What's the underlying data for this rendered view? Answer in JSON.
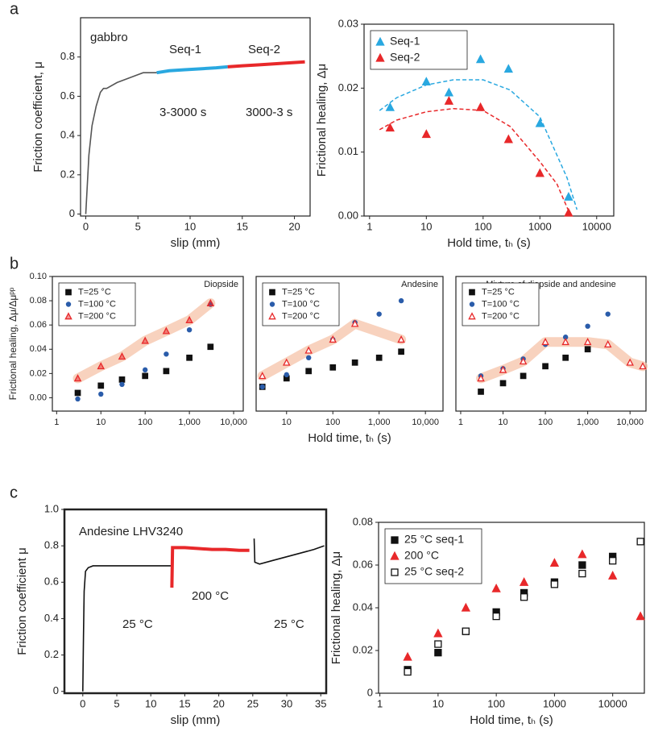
{
  "chart_data": [
    {
      "type": "line",
      "panel_label": "a",
      "xlabel": "slip (mm)",
      "ylabel": "Friction coefficient, μ",
      "xlim": [
        -0.5,
        21.5
      ],
      "ylim": [
        -0.01,
        1.0
      ],
      "xticks": [
        0,
        5,
        10,
        15,
        20
      ],
      "yticks": [
        0,
        0.2,
        0.4,
        0.6,
        0.8
      ],
      "annotations": [
        "gabbro",
        "3-3000 s",
        "3000-3 s"
      ],
      "series": [
        {
          "color": "#555555",
          "x": [
            0,
            0.1,
            0.3,
            0.6,
            1,
            1.4,
            1.7,
            2,
            3,
            4,
            5,
            5.5,
            6.8
          ],
          "values": [
            0,
            0.1,
            0.3,
            0.45,
            0.55,
            0.62,
            0.64,
            0.64,
            0.67,
            0.69,
            0.71,
            0.72,
            0.72
          ]
        },
        {
          "name": "Seq-1",
          "color": "#29a8e0",
          "x": [
            6.8,
            8,
            9.5,
            11,
            12.5,
            13.6
          ],
          "values": [
            0.72,
            0.73,
            0.735,
            0.74,
            0.745,
            0.75
          ]
        },
        {
          "name": "Seq-2",
          "color": "#e8282a",
          "x": [
            13.6,
            15,
            16.5,
            18,
            19.5,
            21
          ],
          "values": [
            0.75,
            0.755,
            0.76,
            0.765,
            0.77,
            0.775
          ]
        }
      ]
    },
    {
      "type": "scatter",
      "xscale": "log",
      "xlabel": "Hold time, tₕ (s)",
      "ylabel": "Frictional healing, Δμ",
      "legend": "upper left",
      "xlim": [
        0.8,
        20000
      ],
      "ylim": [
        0,
        0.03
      ],
      "xticks": [
        1,
        10,
        100,
        1000,
        10000
      ],
      "yticks": [
        {
          "value": 0,
          "label": "0.00"
        },
        0.01,
        0.02,
        0.03
      ],
      "series": [
        {
          "name": "Seq-1",
          "color": "#29a8e0",
          "marker": "triangle",
          "x": [
            2.3,
            10,
            25,
            90,
            280,
            1000,
            3200
          ],
          "values": [
            0.017,
            0.021,
            0.0193,
            0.0245,
            0.023,
            0.0145,
            0.003
          ]
        },
        {
          "name": "Seq-2",
          "color": "#e8282a",
          "marker": "triangle",
          "x": [
            2.3,
            10,
            25,
            90,
            280,
            1000,
            3200
          ],
          "values": [
            0.0138,
            0.0128,
            0.018,
            0.017,
            0.012,
            0.0067,
            0.0005
          ]
        },
        {
          "color": "#29a8e0",
          "style": "dashed",
          "x": [
            1.5,
            3,
            10,
            30,
            100,
            300,
            1000,
            3000,
            4500
          ],
          "values": [
            0.0165,
            0.0185,
            0.0205,
            0.0213,
            0.0213,
            0.0197,
            0.0155,
            0.006,
            0.001
          ]
        },
        {
          "color": "#e8282a",
          "style": "dashed",
          "x": [
            1.5,
            3,
            10,
            30,
            100,
            300,
            1000,
            2000,
            3500
          ],
          "values": [
            0.0135,
            0.015,
            0.0163,
            0.0168,
            0.0165,
            0.014,
            0.0085,
            0.005,
            0
          ]
        }
      ]
    },
    {
      "type": "scatter",
      "xscale": "log",
      "panel_label": "b",
      "title": "Diopside",
      "ylabel": "Frictional healing, Δμ/Δμᵖᵖ",
      "legend": "upper left",
      "band_color": "#f6c3a8",
      "xlim": [
        0.8,
        16500
      ],
      "ylim": [
        -0.011,
        0.1
      ],
      "xticks": [
        1,
        10,
        100,
        {
          "value": 1000,
          "label": "1,000"
        },
        {
          "value": 10000,
          "label": "10,000"
        }
      ],
      "yticks": [
        {
          "value": 0,
          "label": "0.00"
        },
        {
          "value": 0.02,
          "label": "0.02"
        },
        {
          "value": 0.04,
          "label": "0.04"
        },
        {
          "value": 0.06,
          "label": "0.06"
        },
        {
          "value": 0.08,
          "label": "0.08"
        },
        {
          "value": 0.1,
          "label": "0.10"
        }
      ],
      "series": [
        {
          "name": "T=25 °C",
          "color": "#111111",
          "marker": "square",
          "x": [
            3,
            10,
            30,
            100,
            300,
            1000,
            3000
          ],
          "values": [
            0.004,
            0.01,
            0.015,
            0.018,
            0.022,
            0.033,
            0.042
          ]
        },
        {
          "name": "T=100 °C",
          "color": "#2a5caa",
          "marker": "circle",
          "x": [
            3,
            10,
            30,
            100,
            300,
            1000,
            3000
          ],
          "values": [
            -0.001,
            0.003,
            0.011,
            0.023,
            0.036,
            0.056,
            0.077
          ]
        },
        {
          "name": "T=200 °C",
          "color": "#e8282a",
          "marker": "triangle-both",
          "x": [
            3,
            10,
            30,
            100,
            300,
            1000,
            3000
          ],
          "values": [
            0.016,
            0.026,
            0.034,
            0.047,
            0.055,
            0.064,
            0.078
          ]
        }
      ]
    },
    {
      "type": "scatter",
      "xscale": "log",
      "title": "Andesine",
      "xlabel": "Hold time, tₕ (s)",
      "legend": "upper left",
      "band_color": "#f6c3a8",
      "xlim": [
        2.2,
        24000
      ],
      "ylim": [
        -0.011,
        0.1
      ],
      "xticks": [
        10,
        100,
        {
          "value": 1000,
          "label": "1,000"
        },
        {
          "value": 10000,
          "label": "10,000"
        }
      ],
      "series": [
        {
          "name": "T=25 °C",
          "color": "#111111",
          "marker": "square",
          "x": [
            3,
            10,
            30,
            100,
            300,
            1000,
            3000
          ],
          "values": [
            0.009,
            0.016,
            0.022,
            0.025,
            0.029,
            0.033,
            0.038
          ]
        },
        {
          "name": "T=100 °C",
          "color": "#2a5caa",
          "marker": "circle",
          "x": [
            3,
            10,
            30,
            100,
            300,
            1000,
            3000
          ],
          "values": [
            0.009,
            0.019,
            0.033,
            0.048,
            0.062,
            0.069,
            0.08
          ]
        },
        {
          "name": "T=200 °C",
          "color": "#e8282a",
          "marker": "triangle-open",
          "x": [
            3,
            10,
            30,
            100,
            300,
            3000
          ],
          "values": [
            0.018,
            0.029,
            0.039,
            0.048,
            0.061,
            0.048
          ]
        }
      ]
    },
    {
      "type": "scatter",
      "xscale": "log",
      "title": "Mixture of diopside and andesine",
      "legend": "upper left",
      "band_color": "#f6c3a8",
      "xlim": [
        0.77,
        23800
      ],
      "ylim": [
        -0.011,
        0.1
      ],
      "xticks": [
        1,
        10,
        100,
        {
          "value": 1000,
          "label": "1,000"
        },
        {
          "value": 10000,
          "label": "10,000"
        }
      ],
      "series": [
        {
          "name": "T=25 °C",
          "color": "#111111",
          "marker": "square",
          "x": [
            3,
            10,
            30,
            100,
            300,
            1000
          ],
          "values": [
            0.005,
            0.012,
            0.018,
            0.026,
            0.033,
            0.04
          ]
        },
        {
          "name": "T=100 °C",
          "color": "#2a5caa",
          "marker": "circle",
          "x": [
            3,
            10,
            30,
            100,
            300,
            1000,
            3000
          ],
          "values": [
            0.018,
            0.024,
            0.032,
            0.044,
            0.05,
            0.059,
            0.069
          ]
        },
        {
          "name": "T=200 °C",
          "color": "#e8282a",
          "marker": "triangle-open",
          "x": [
            3,
            10,
            30,
            100,
            300,
            1000,
            3000,
            10000,
            20000
          ],
          "values": [
            0.016,
            0.023,
            0.03,
            0.046,
            0.046,
            0.046,
            0.044,
            0.029,
            0.026
          ]
        }
      ]
    },
    {
      "type": "line",
      "panel_label": "c",
      "xlabel": "slip (mm)",
      "ylabel": "Friction coefficient μ",
      "xlim": [
        -2.7,
        35.8
      ],
      "ylim": [
        -0.01,
        1.0
      ],
      "xticks": [
        0,
        5,
        10,
        15,
        20,
        25,
        30,
        35
      ],
      "yticks": [
        0,
        0.2,
        0.4,
        0.6,
        0.8,
        {
          "value": 1,
          "label": "1.0"
        }
      ],
      "annotations": [
        "Andesine  LHV3240",
        "25 °C",
        "200 °C",
        "25 °C"
      ],
      "series": [
        {
          "color": "#111111",
          "x": [
            0,
            0.1,
            0.2,
            0.4,
            0.8,
            1.5,
            2.5,
            5,
            8,
            11,
            13
          ],
          "values": [
            0,
            0.3,
            0.55,
            0.66,
            0.68,
            0.69,
            0.69,
            0.69,
            0.69,
            0.69,
            0.69
          ]
        },
        {
          "color": "#e8282a",
          "x": [
            13.1,
            13.2,
            15,
            17,
            19,
            21,
            23,
            24.5
          ],
          "values": [
            0.57,
            0.79,
            0.79,
            0.785,
            0.78,
            0.78,
            0.775,
            0.775
          ]
        },
        {
          "color": "#111111",
          "x": [
            25.2,
            25.3,
            26,
            28,
            30,
            32,
            34,
            35.5
          ],
          "values": [
            0.84,
            0.71,
            0.7,
            0.72,
            0.74,
            0.76,
            0.78,
            0.8
          ]
        }
      ]
    },
    {
      "type": "scatter",
      "xscale": "log",
      "xlabel": "Hold time, tₕ (s)",
      "ylabel": "Frictional healing, Δμ",
      "legend": "upper left",
      "xlim": [
        0.95,
        35000
      ],
      "ylim": [
        0,
        0.08
      ],
      "xticks": [
        1,
        10,
        100,
        1000,
        10000
      ],
      "yticks": [
        0,
        0.02,
        0.04,
        0.06,
        0.08
      ],
      "series": [
        {
          "name": "25 °C  seq-1",
          "color": "#111111",
          "marker": "square",
          "x": [
            3,
            10,
            30,
            100,
            300,
            1000,
            3000,
            10000
          ],
          "values": [
            0.011,
            0.019,
            0.029,
            0.038,
            0.047,
            0.052,
            0.06,
            0.064
          ]
        },
        {
          "name": "200 °C",
          "color": "#e8282a",
          "marker": "triangle",
          "x": [
            3,
            10,
            30,
            100,
            300,
            1000,
            3000,
            10000,
            30000
          ],
          "values": [
            0.017,
            0.028,
            0.04,
            0.049,
            0.052,
            0.061,
            0.065,
            0.055,
            0.036
          ]
        },
        {
          "name": "25 °C  seq-2",
          "color": "#111111",
          "marker": "square-open",
          "x": [
            3,
            10,
            30,
            100,
            300,
            1000,
            3000,
            10000,
            30000
          ],
          "values": [
            0.01,
            0.023,
            0.029,
            0.036,
            0.045,
            0.051,
            0.056,
            0.062,
            0.071
          ]
        }
      ]
    }
  ]
}
